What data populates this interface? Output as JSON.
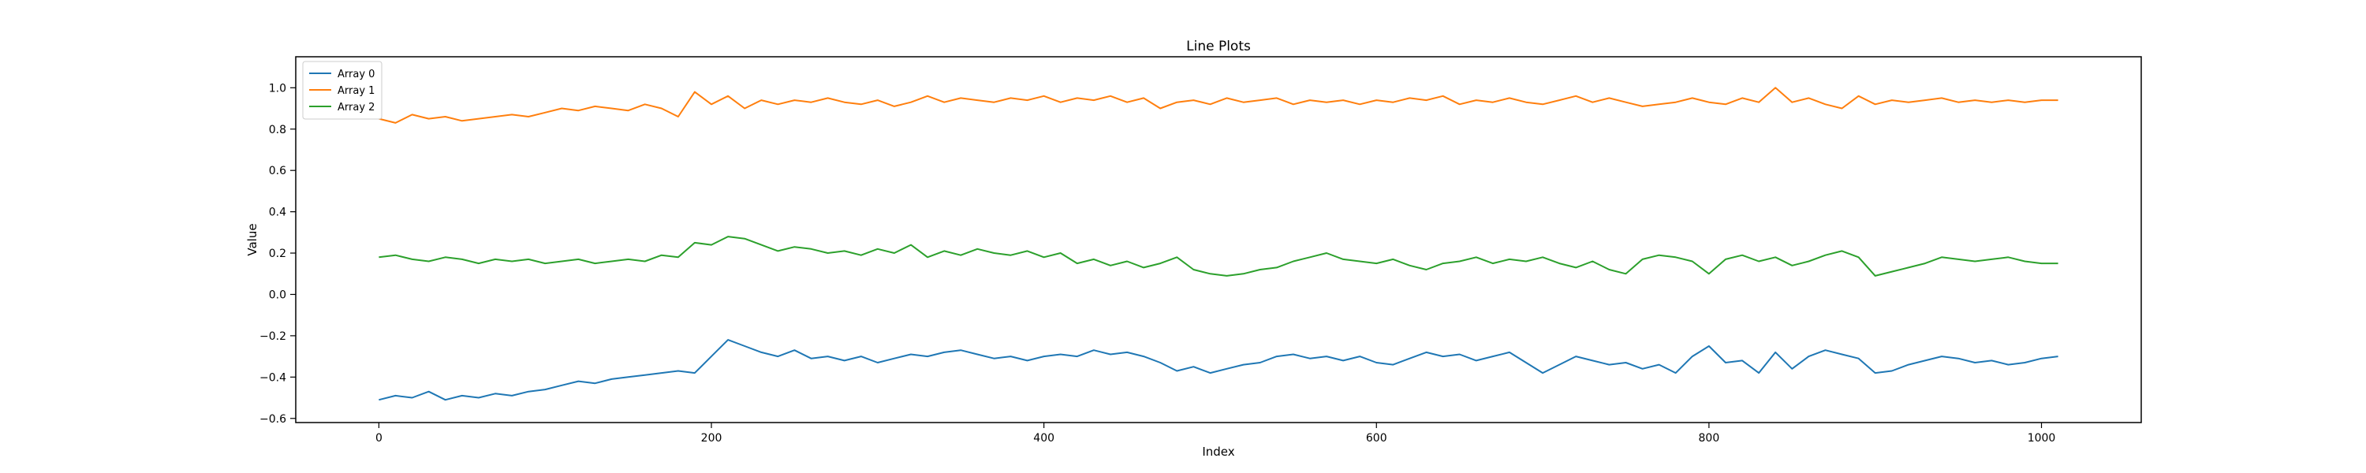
{
  "chart_data": {
    "type": "line",
    "title": "Line Plots",
    "xlabel": "Index",
    "ylabel": "Value",
    "xlim": [
      -50,
      1060
    ],
    "ylim": [
      -0.62,
      1.15
    ],
    "xticks": [
      0,
      200,
      400,
      600,
      800,
      1000
    ],
    "xtick_labels": [
      "0",
      "200",
      "400",
      "600",
      "800",
      "1000"
    ],
    "yticks": [
      -0.6,
      -0.4,
      -0.2,
      0.0,
      0.2,
      0.4,
      0.6,
      0.8,
      1.0
    ],
    "ytick_labels": [
      "−0.6",
      "−0.4",
      "−0.2",
      "0.0",
      "0.2",
      "0.4",
      "0.6",
      "0.8",
      "1.0"
    ],
    "grid": false,
    "legend_position": "top-left",
    "series": [
      {
        "name": "Array 0",
        "color": "#1f77b4",
        "x": [
          0,
          10,
          20,
          30,
          40,
          50,
          60,
          70,
          80,
          90,
          100,
          110,
          120,
          130,
          140,
          150,
          160,
          170,
          180,
          190,
          200,
          210,
          220,
          230,
          240,
          250,
          260,
          270,
          280,
          290,
          300,
          310,
          320,
          330,
          340,
          350,
          360,
          370,
          380,
          390,
          400,
          410,
          420,
          430,
          440,
          450,
          460,
          470,
          480,
          490,
          500,
          510,
          520,
          530,
          540,
          550,
          560,
          570,
          580,
          590,
          600,
          610,
          620,
          630,
          640,
          650,
          660,
          670,
          680,
          690,
          700,
          710,
          720,
          730,
          740,
          750,
          760,
          770,
          780,
          790,
          800,
          810,
          820,
          830,
          840,
          850,
          860,
          870,
          880,
          890,
          900,
          910,
          920,
          930,
          940,
          950,
          960,
          970,
          980,
          990,
          1000,
          1010
        ],
        "y": [
          -0.51,
          -0.49,
          -0.5,
          -0.47,
          -0.51,
          -0.49,
          -0.5,
          -0.48,
          -0.49,
          -0.47,
          -0.46,
          -0.44,
          -0.42,
          -0.43,
          -0.41,
          -0.4,
          -0.39,
          -0.38,
          -0.37,
          -0.38,
          -0.3,
          -0.22,
          -0.25,
          -0.28,
          -0.3,
          -0.27,
          -0.31,
          -0.3,
          -0.32,
          -0.3,
          -0.33,
          -0.31,
          -0.29,
          -0.3,
          -0.28,
          -0.27,
          -0.29,
          -0.31,
          -0.3,
          -0.32,
          -0.3,
          -0.29,
          -0.3,
          -0.27,
          -0.29,
          -0.28,
          -0.3,
          -0.33,
          -0.37,
          -0.35,
          -0.38,
          -0.36,
          -0.34,
          -0.33,
          -0.3,
          -0.29,
          -0.31,
          -0.3,
          -0.32,
          -0.3,
          -0.33,
          -0.34,
          -0.31,
          -0.28,
          -0.3,
          -0.29,
          -0.32,
          -0.3,
          -0.28,
          -0.33,
          -0.38,
          -0.34,
          -0.3,
          -0.32,
          -0.34,
          -0.33,
          -0.36,
          -0.34,
          -0.38,
          -0.3,
          -0.25,
          -0.33,
          -0.32,
          -0.38,
          -0.28,
          -0.36,
          -0.3,
          -0.27,
          -0.29,
          -0.31,
          -0.38,
          -0.37,
          -0.34,
          -0.32,
          -0.3,
          -0.31,
          -0.33,
          -0.32,
          -0.34,
          -0.33,
          -0.31,
          -0.3
        ]
      },
      {
        "name": "Array 1",
        "color": "#ff7f0e",
        "x": [
          0,
          10,
          20,
          30,
          40,
          50,
          60,
          70,
          80,
          90,
          100,
          110,
          120,
          130,
          140,
          150,
          160,
          170,
          180,
          190,
          200,
          210,
          220,
          230,
          240,
          250,
          260,
          270,
          280,
          290,
          300,
          310,
          320,
          330,
          340,
          350,
          360,
          370,
          380,
          390,
          400,
          410,
          420,
          430,
          440,
          450,
          460,
          470,
          480,
          490,
          500,
          510,
          520,
          530,
          540,
          550,
          560,
          570,
          580,
          590,
          600,
          610,
          620,
          630,
          640,
          650,
          660,
          670,
          680,
          690,
          700,
          710,
          720,
          730,
          740,
          750,
          760,
          770,
          780,
          790,
          800,
          810,
          820,
          830,
          840,
          850,
          860,
          870,
          880,
          890,
          900,
          910,
          920,
          930,
          940,
          950,
          960,
          970,
          980,
          990,
          1000,
          1010
        ],
        "y": [
          0.85,
          0.83,
          0.87,
          0.85,
          0.86,
          0.84,
          0.85,
          0.86,
          0.87,
          0.86,
          0.88,
          0.9,
          0.89,
          0.91,
          0.9,
          0.89,
          0.92,
          0.9,
          0.86,
          0.98,
          0.92,
          0.96,
          0.9,
          0.94,
          0.92,
          0.94,
          0.93,
          0.95,
          0.93,
          0.92,
          0.94,
          0.91,
          0.93,
          0.96,
          0.93,
          0.95,
          0.94,
          0.93,
          0.95,
          0.94,
          0.96,
          0.93,
          0.95,
          0.94,
          0.96,
          0.93,
          0.95,
          0.9,
          0.93,
          0.94,
          0.92,
          0.95,
          0.93,
          0.94,
          0.95,
          0.92,
          0.94,
          0.93,
          0.94,
          0.92,
          0.94,
          0.93,
          0.95,
          0.94,
          0.96,
          0.92,
          0.94,
          0.93,
          0.95,
          0.93,
          0.92,
          0.94,
          0.96,
          0.93,
          0.95,
          0.93,
          0.91,
          0.92,
          0.93,
          0.95,
          0.93,
          0.92,
          0.95,
          0.93,
          1.0,
          0.93,
          0.95,
          0.92,
          0.9,
          0.96,
          0.92,
          0.94,
          0.93,
          0.94,
          0.95,
          0.93,
          0.94,
          0.93,
          0.94,
          0.93,
          0.94,
          0.94
        ]
      },
      {
        "name": "Array 2",
        "color": "#2ca02c",
        "x": [
          0,
          10,
          20,
          30,
          40,
          50,
          60,
          70,
          80,
          90,
          100,
          110,
          120,
          130,
          140,
          150,
          160,
          170,
          180,
          190,
          200,
          210,
          220,
          230,
          240,
          250,
          260,
          270,
          280,
          290,
          300,
          310,
          320,
          330,
          340,
          350,
          360,
          370,
          380,
          390,
          400,
          410,
          420,
          430,
          440,
          450,
          460,
          470,
          480,
          490,
          500,
          510,
          520,
          530,
          540,
          550,
          560,
          570,
          580,
          590,
          600,
          610,
          620,
          630,
          640,
          650,
          660,
          670,
          680,
          690,
          700,
          710,
          720,
          730,
          740,
          750,
          760,
          770,
          780,
          790,
          800,
          810,
          820,
          830,
          840,
          850,
          860,
          870,
          880,
          890,
          900,
          910,
          920,
          930,
          940,
          950,
          960,
          970,
          980,
          990,
          1000,
          1010
        ],
        "y": [
          0.18,
          0.19,
          0.17,
          0.16,
          0.18,
          0.17,
          0.15,
          0.17,
          0.16,
          0.17,
          0.15,
          0.16,
          0.17,
          0.15,
          0.16,
          0.17,
          0.16,
          0.19,
          0.18,
          0.25,
          0.24,
          0.28,
          0.27,
          0.24,
          0.21,
          0.23,
          0.22,
          0.2,
          0.21,
          0.19,
          0.22,
          0.2,
          0.24,
          0.18,
          0.21,
          0.19,
          0.22,
          0.2,
          0.19,
          0.21,
          0.18,
          0.2,
          0.15,
          0.17,
          0.14,
          0.16,
          0.13,
          0.15,
          0.18,
          0.12,
          0.1,
          0.09,
          0.1,
          0.12,
          0.13,
          0.16,
          0.18,
          0.2,
          0.17,
          0.16,
          0.15,
          0.17,
          0.14,
          0.12,
          0.15,
          0.16,
          0.18,
          0.15,
          0.17,
          0.16,
          0.18,
          0.15,
          0.13,
          0.16,
          0.12,
          0.1,
          0.17,
          0.19,
          0.18,
          0.16,
          0.1,
          0.17,
          0.19,
          0.16,
          0.18,
          0.14,
          0.16,
          0.19,
          0.21,
          0.18,
          0.09,
          0.11,
          0.13,
          0.15,
          0.18,
          0.17,
          0.16,
          0.17,
          0.18,
          0.16,
          0.15,
          0.15
        ]
      }
    ]
  }
}
